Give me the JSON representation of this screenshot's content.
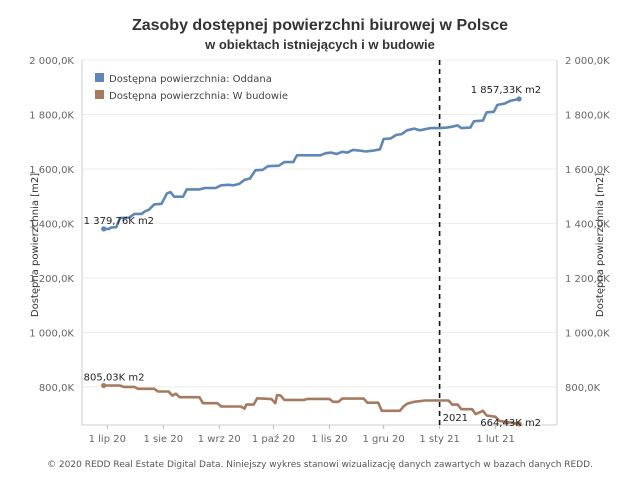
{
  "chart_data": {
    "type": "line",
    "title": "Zasoby dostępnej powierzchni biurowej w Polsce",
    "subtitle": "w obiektach istniejących i w budowie",
    "ylabel": "Dostępna powierzchnia [m2]",
    "ylim": [
      660,
      2000
    ],
    "yticks": [
      {
        "value": 800,
        "label": "800,0K"
      },
      {
        "value": 1000,
        "label": "1 000,0K"
      },
      {
        "value": 1200,
        "label": "1 200,0K"
      },
      {
        "value": 1400,
        "label": "1 400,0K"
      },
      {
        "value": 1600,
        "label": "1 600,0K"
      },
      {
        "value": 1800,
        "label": "1 800,0K"
      },
      {
        "value": 2000,
        "label": "2 000,0K"
      }
    ],
    "xlim": [
      "2020-06-17",
      "2021-03-07"
    ],
    "xticks": [
      {
        "date": "2020-07-01",
        "label": "1 lip 20"
      },
      {
        "date": "2020-08-01",
        "label": "1 sie 20"
      },
      {
        "date": "2020-09-01",
        "label": "1 wrz 20"
      },
      {
        "date": "2020-10-01",
        "label": "1 paź 20"
      },
      {
        "date": "2020-11-01",
        "label": "1 lis 20"
      },
      {
        "date": "2020-12-01",
        "label": "1 gru 20"
      },
      {
        "date": "2021-01-01",
        "label": "1 sty 21"
      },
      {
        "date": "2021-02-01",
        "label": "1 lut 21"
      }
    ],
    "grid": true,
    "legend_position": "top-left",
    "reference_line": {
      "date": "2021-01-01",
      "label": "2021"
    },
    "series": [
      {
        "name": "Dostępna powierzchnia: Oddana",
        "color": "#5f87b5",
        "start_label": "1 379,76K m2",
        "end_label": "1 857,33K m2",
        "points": [
          [
            "2020-06-29",
            1380
          ],
          [
            "2020-07-02",
            1380
          ],
          [
            "2020-07-03",
            1385
          ],
          [
            "2020-07-06",
            1386
          ],
          [
            "2020-07-08",
            1420
          ],
          [
            "2020-07-13",
            1421
          ],
          [
            "2020-07-16",
            1435
          ],
          [
            "2020-07-20",
            1435
          ],
          [
            "2020-07-22",
            1445
          ],
          [
            "2020-07-24",
            1450
          ],
          [
            "2020-07-27",
            1470
          ],
          [
            "2020-07-31",
            1472
          ],
          [
            "2020-08-03",
            1510
          ],
          [
            "2020-08-05",
            1515
          ],
          [
            "2020-08-07",
            1498
          ],
          [
            "2020-08-12",
            1498
          ],
          [
            "2020-08-14",
            1525
          ],
          [
            "2020-08-21",
            1525
          ],
          [
            "2020-08-24",
            1530
          ],
          [
            "2020-08-30",
            1530
          ],
          [
            "2020-09-02",
            1540
          ],
          [
            "2020-09-06",
            1542
          ],
          [
            "2020-09-09",
            1540
          ],
          [
            "2020-09-12",
            1545
          ],
          [
            "2020-09-15",
            1560
          ],
          [
            "2020-09-18",
            1565
          ],
          [
            "2020-09-21",
            1595
          ],
          [
            "2020-09-25",
            1597
          ],
          [
            "2020-09-28",
            1610
          ],
          [
            "2020-10-04",
            1612
          ],
          [
            "2020-10-07",
            1625
          ],
          [
            "2020-10-12",
            1625
          ],
          [
            "2020-10-14",
            1650
          ],
          [
            "2020-10-27",
            1650
          ],
          [
            "2020-10-30",
            1658
          ],
          [
            "2020-11-02",
            1660
          ],
          [
            "2020-11-05",
            1655
          ],
          [
            "2020-11-08",
            1663
          ],
          [
            "2020-11-11",
            1660
          ],
          [
            "2020-11-14",
            1670
          ],
          [
            "2020-11-17",
            1668
          ],
          [
            "2020-11-21",
            1664
          ],
          [
            "2020-11-26",
            1668
          ],
          [
            "2020-11-29",
            1672
          ],
          [
            "2020-12-01",
            1710
          ],
          [
            "2020-12-05",
            1712
          ],
          [
            "2020-12-08",
            1725
          ],
          [
            "2020-12-11",
            1728
          ],
          [
            "2020-12-14",
            1742
          ],
          [
            "2020-12-18",
            1748
          ],
          [
            "2020-12-21",
            1742
          ],
          [
            "2020-12-24",
            1746
          ],
          [
            "2020-12-27",
            1750
          ],
          [
            "2021-01-01",
            1750
          ],
          [
            "2021-01-05",
            1752
          ],
          [
            "2021-01-08",
            1755
          ],
          [
            "2021-01-11",
            1760
          ],
          [
            "2021-01-13",
            1750
          ],
          [
            "2021-01-18",
            1752
          ],
          [
            "2021-01-20",
            1775
          ],
          [
            "2021-01-25",
            1778
          ],
          [
            "2021-01-27",
            1808
          ],
          [
            "2021-01-31",
            1810
          ],
          [
            "2021-02-02",
            1835
          ],
          [
            "2021-02-06",
            1840
          ],
          [
            "2021-02-09",
            1850
          ],
          [
            "2021-02-14",
            1857
          ]
        ]
      },
      {
        "name": "Dostępna powierzchnia: W budowie",
        "color": "#a57a5f",
        "start_label": "805,03K m2",
        "end_label": "664,43K m2",
        "points": [
          [
            "2020-06-29",
            805
          ],
          [
            "2020-07-08",
            805
          ],
          [
            "2020-07-10",
            800
          ],
          [
            "2020-07-16",
            800
          ],
          [
            "2020-07-18",
            793
          ],
          [
            "2020-07-27",
            793
          ],
          [
            "2020-07-29",
            783
          ],
          [
            "2020-08-04",
            783
          ],
          [
            "2020-08-06",
            768
          ],
          [
            "2020-08-08",
            775
          ],
          [
            "2020-08-10",
            762
          ],
          [
            "2020-08-21",
            762
          ],
          [
            "2020-08-23",
            740
          ],
          [
            "2020-08-31",
            740
          ],
          [
            "2020-09-02",
            728
          ],
          [
            "2020-09-13",
            728
          ],
          [
            "2020-09-15",
            720
          ],
          [
            "2020-09-16",
            735
          ],
          [
            "2020-09-20",
            735
          ],
          [
            "2020-09-22",
            758
          ],
          [
            "2020-09-30",
            755
          ],
          [
            "2020-10-02",
            740
          ],
          [
            "2020-10-03",
            770
          ],
          [
            "2020-10-05",
            768
          ],
          [
            "2020-10-07",
            752
          ],
          [
            "2020-10-18",
            752
          ],
          [
            "2020-10-20",
            756
          ],
          [
            "2020-11-01",
            756
          ],
          [
            "2020-11-03",
            745
          ],
          [
            "2020-11-06",
            745
          ],
          [
            "2020-11-08",
            757
          ],
          [
            "2020-11-20",
            757
          ],
          [
            "2020-11-22",
            742
          ],
          [
            "2020-11-28",
            742
          ],
          [
            "2020-11-30",
            712
          ],
          [
            "2020-12-08",
            712
          ],
          [
            "2020-12-10",
            712
          ],
          [
            "2020-12-12",
            728
          ],
          [
            "2020-12-14",
            738
          ],
          [
            "2020-12-18",
            745
          ],
          [
            "2020-12-24",
            750
          ],
          [
            "2021-01-06",
            750
          ],
          [
            "2021-01-08",
            735
          ],
          [
            "2021-01-11",
            735
          ],
          [
            "2021-01-13",
            718
          ],
          [
            "2021-01-19",
            718
          ],
          [
            "2021-01-21",
            700
          ],
          [
            "2021-01-25",
            712
          ],
          [
            "2021-01-27",
            695
          ],
          [
            "2021-02-01",
            690
          ],
          [
            "2021-02-03",
            675
          ],
          [
            "2021-02-14",
            664
          ]
        ]
      }
    ],
    "footer": "© 2020 REDD Real Estate Digital Data. Niniejszy wykres stanowi wizualizację danych zawartych w bazach danych REDD."
  }
}
